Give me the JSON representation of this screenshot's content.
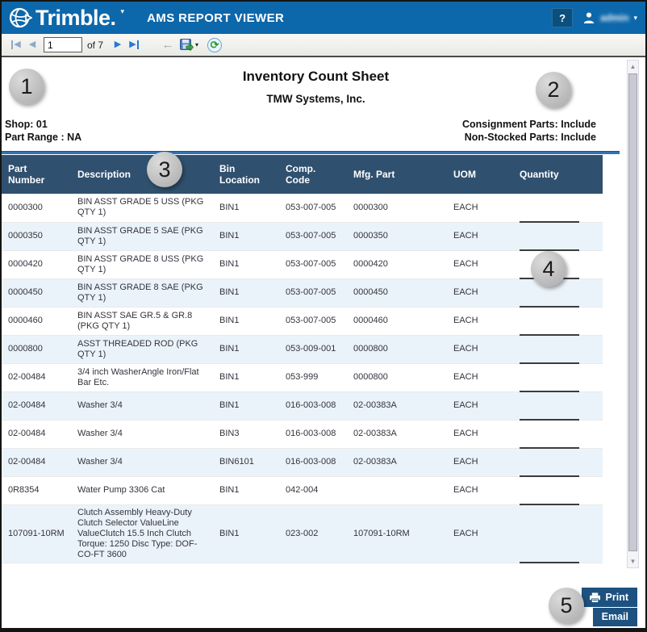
{
  "header": {
    "logo_text": "Trimble.",
    "app_title": "AMS REPORT VIEWER",
    "help_label": "?",
    "username": "admin"
  },
  "toolbar": {
    "page_value": "1",
    "pages_label": "of 7"
  },
  "icons": {
    "brand_caret": "▾",
    "user_caret": "▾",
    "first_page": "◀",
    "prev_page": "◀",
    "next_page": "▶",
    "last_page": "▶",
    "back_arrow": "←",
    "export_caret": "▾",
    "refresh": "⟳",
    "scroll_up": "▲",
    "scroll_down": "▼"
  },
  "report": {
    "title": "Inventory Count Sheet",
    "company": "TMW Systems, Inc.",
    "shop_label": "Shop: 01",
    "part_range_label": "Part Range : NA",
    "consignment_label": "Consignment Parts: Include",
    "non_stocked_label": "Non-Stocked Parts: Include"
  },
  "table": {
    "columns": [
      "Part Number",
      "Description",
      "Bin Location",
      "Comp. Code",
      "Mfg. Part",
      "UOM",
      "Quantity"
    ],
    "rows": [
      {
        "part": "0000300",
        "desc": "BIN ASST GRADE 5 USS (PKG QTY 1)",
        "bin": "BIN1",
        "comp": "053-007-005",
        "mfg": "0000300",
        "uom": "EACH",
        "qty": ""
      },
      {
        "part": "0000350",
        "desc": "BIN ASST  GRADE 5 SAE (PKG QTY 1)",
        "bin": "BIN1",
        "comp": "053-007-005",
        "mfg": "0000350",
        "uom": "EACH",
        "qty": ""
      },
      {
        "part": "0000420",
        "desc": "BIN ASST GRADE 8 USS (PKG QTY 1)",
        "bin": "BIN1",
        "comp": "053-007-005",
        "mfg": "0000420",
        "uom": "EACH",
        "qty": ""
      },
      {
        "part": "0000450",
        "desc": "BIN ASST  GRADE 8 SAE (PKG QTY 1)",
        "bin": "BIN1",
        "comp": "053-007-005",
        "mfg": "0000450",
        "uom": "EACH",
        "qty": ""
      },
      {
        "part": "0000460",
        "desc": "BIN ASST SAE GR.5 & GR.8 (PKG QTY 1)",
        "bin": "BIN1",
        "comp": "053-007-005",
        "mfg": "0000460",
        "uom": "EACH",
        "qty": ""
      },
      {
        "part": "0000800",
        "desc": "ASST THREADED ROD (PKG QTY 1)",
        "bin": "BIN1",
        "comp": "053-009-001",
        "mfg": "0000800",
        "uom": "EACH",
        "qty": ""
      },
      {
        "part": "02-00484",
        "desc": "3/4 inch WasherAngle Iron/Flat Bar Etc.",
        "bin": "BIN1",
        "comp": "053-999",
        "mfg": "0000800",
        "uom": "EACH",
        "qty": ""
      },
      {
        "part": "02-00484",
        "desc": "Washer 3/4",
        "bin": "BIN1",
        "comp": "016-003-008",
        "mfg": "02-00383A",
        "uom": "EACH",
        "qty": ""
      },
      {
        "part": "02-00484",
        "desc": "Washer 3/4",
        "bin": "BIN3",
        "comp": "016-003-008",
        "mfg": "02-00383A",
        "uom": "EACH",
        "qty": ""
      },
      {
        "part": "02-00484",
        "desc": "Washer 3/4",
        "bin": "BIN6101",
        "comp": "016-003-008",
        "mfg": "02-00383A",
        "uom": "EACH",
        "qty": ""
      },
      {
        "part": "0R8354",
        "desc": "Water Pump 3306 Cat",
        "bin": "BIN1",
        "comp": "042-004",
        "mfg": "",
        "uom": "EACH",
        "qty": ""
      },
      {
        "part": "107091-10RM",
        "desc": "Clutch Assembly Heavy-Duty Clutch Selector ValueLine ValueClutch 15.5 Inch Clutch Torque: 1250 Disc Type: DOF-CO-FT 3600",
        "bin": "BIN1",
        "comp": "023-002",
        "mfg": "107091-10RM",
        "uom": "EACH",
        "qty": ""
      }
    ]
  },
  "callouts": [
    "1",
    "2",
    "3",
    "4",
    "5"
  ],
  "actions": {
    "print_label": "Print",
    "email_label": "Email"
  },
  "colors": {
    "header_blue": "#0d67ab",
    "table_header_navy": "#30506f",
    "row_alt_blue": "#ebf3fa",
    "button_navy": "#1d5180",
    "rule_blue": "#2e74b5"
  }
}
